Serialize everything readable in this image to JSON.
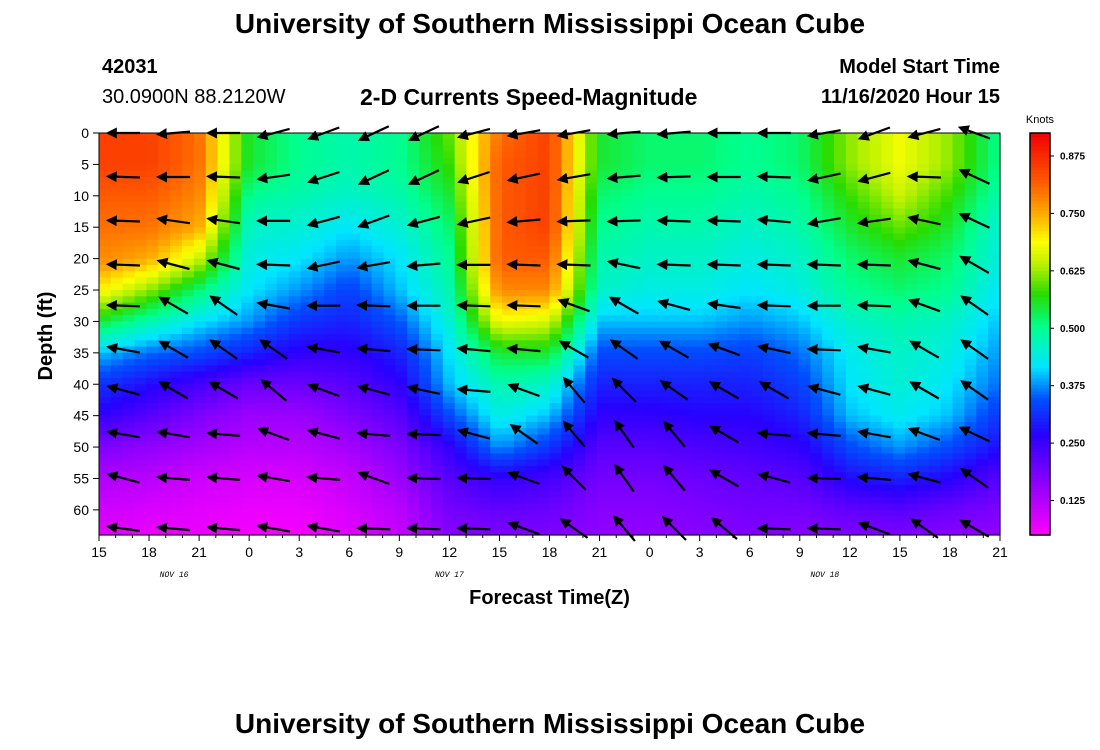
{
  "header": {
    "title": "University of Southern Mississippi Ocean Cube",
    "station_id": "42031",
    "station_coords": "30.0900N 88.2120W",
    "plot_title": "2-D Currents Speed-Magnitude",
    "model_start_label": "Model Start Time",
    "model_start_value": "11/16/2020 Hour 15"
  },
  "footer": {
    "title": "University of Southern Mississippi Ocean Cube"
  },
  "chart_data": {
    "type": "heatmap",
    "title": "2-D Currents Speed-Magnitude",
    "xlabel": "Forecast Time(Z)",
    "ylabel": "Depth (ft)",
    "x_ticks": [
      "15",
      "18",
      "21",
      "0",
      "3",
      "6",
      "9",
      "12",
      "15",
      "18",
      "21",
      "0",
      "3",
      "6",
      "9",
      "12",
      "15",
      "18",
      "21"
    ],
    "date_labels": [
      {
        "label": "NOV 16",
        "tick_index": 1.5
      },
      {
        "label": "NOV 17",
        "tick_index": 7
      },
      {
        "label": "NOV 18",
        "tick_index": 14.5
      }
    ],
    "y_ticks": [
      0,
      5,
      10,
      15,
      20,
      25,
      30,
      35,
      40,
      45,
      50,
      55,
      60
    ],
    "ylim": [
      0,
      64
    ],
    "y_inverted": true,
    "colorbar": {
      "label": "Knots",
      "range": [
        0.05,
        0.925
      ],
      "ticks": [
        "0.125",
        "0.250",
        "0.375",
        "0.500",
        "0.625",
        "0.750",
        "0.875"
      ],
      "tick_values": [
        0.125,
        0.25,
        0.375,
        0.5,
        0.625,
        0.75,
        0.875
      ],
      "colormap": "rainbow: magenta-blue-cyan-green-yellow-orange-red"
    },
    "speed_grid": {
      "depths_ft": [
        0,
        5,
        10,
        15,
        20,
        25,
        30,
        35,
        40,
        45,
        50,
        55,
        60,
        64
      ],
      "time_index": [
        0,
        1,
        2,
        3,
        4,
        5,
        6,
        7,
        8,
        9,
        10,
        11,
        12,
        13,
        14,
        15,
        16,
        17,
        18
      ],
      "values": [
        [
          0.85,
          0.85,
          0.8,
          0.55,
          0.5,
          0.48,
          0.5,
          0.6,
          0.8,
          0.85,
          0.55,
          0.52,
          0.52,
          0.5,
          0.52,
          0.62,
          0.68,
          0.62,
          0.5
        ],
        [
          0.85,
          0.85,
          0.8,
          0.55,
          0.5,
          0.48,
          0.5,
          0.58,
          0.82,
          0.85,
          0.55,
          0.52,
          0.52,
          0.5,
          0.52,
          0.62,
          0.68,
          0.62,
          0.5
        ],
        [
          0.82,
          0.82,
          0.78,
          0.5,
          0.48,
          0.46,
          0.48,
          0.55,
          0.82,
          0.85,
          0.52,
          0.5,
          0.5,
          0.48,
          0.5,
          0.58,
          0.65,
          0.58,
          0.48
        ],
        [
          0.8,
          0.8,
          0.75,
          0.46,
          0.45,
          0.42,
          0.45,
          0.52,
          0.82,
          0.85,
          0.5,
          0.48,
          0.48,
          0.46,
          0.48,
          0.55,
          0.6,
          0.55,
          0.45
        ],
        [
          0.78,
          0.75,
          0.65,
          0.44,
          0.42,
          0.38,
          0.42,
          0.5,
          0.82,
          0.82,
          0.48,
          0.46,
          0.46,
          0.44,
          0.46,
          0.52,
          0.55,
          0.52,
          0.44
        ],
        [
          0.7,
          0.62,
          0.52,
          0.42,
          0.38,
          0.33,
          0.4,
          0.48,
          0.78,
          0.78,
          0.46,
          0.44,
          0.44,
          0.42,
          0.44,
          0.5,
          0.52,
          0.5,
          0.42
        ],
        [
          0.55,
          0.48,
          0.42,
          0.38,
          0.32,
          0.3,
          0.35,
          0.45,
          0.68,
          0.66,
          0.4,
          0.4,
          0.4,
          0.38,
          0.4,
          0.46,
          0.48,
          0.46,
          0.4
        ],
        [
          0.4,
          0.36,
          0.34,
          0.3,
          0.26,
          0.26,
          0.3,
          0.42,
          0.55,
          0.55,
          0.34,
          0.34,
          0.34,
          0.33,
          0.36,
          0.43,
          0.46,
          0.44,
          0.38
        ],
        [
          0.32,
          0.28,
          0.24,
          0.2,
          0.2,
          0.22,
          0.26,
          0.4,
          0.48,
          0.46,
          0.3,
          0.3,
          0.3,
          0.3,
          0.33,
          0.42,
          0.45,
          0.42,
          0.36
        ],
        [
          0.26,
          0.22,
          0.18,
          0.15,
          0.15,
          0.18,
          0.22,
          0.34,
          0.44,
          0.4,
          0.26,
          0.26,
          0.27,
          0.27,
          0.3,
          0.4,
          0.43,
          0.4,
          0.32
        ],
        [
          0.18,
          0.16,
          0.14,
          0.12,
          0.12,
          0.14,
          0.18,
          0.26,
          0.38,
          0.32,
          0.22,
          0.22,
          0.23,
          0.24,
          0.26,
          0.34,
          0.38,
          0.34,
          0.28
        ],
        [
          0.13,
          0.12,
          0.1,
          0.09,
          0.09,
          0.11,
          0.15,
          0.22,
          0.26,
          0.24,
          0.19,
          0.19,
          0.2,
          0.21,
          0.22,
          0.28,
          0.3,
          0.27,
          0.22
        ],
        [
          0.1,
          0.09,
          0.08,
          0.07,
          0.07,
          0.09,
          0.12,
          0.19,
          0.21,
          0.2,
          0.17,
          0.17,
          0.18,
          0.19,
          0.19,
          0.21,
          0.22,
          0.2,
          0.18
        ],
        [
          0.08,
          0.07,
          0.07,
          0.06,
          0.06,
          0.08,
          0.11,
          0.17,
          0.18,
          0.18,
          0.16,
          0.16,
          0.17,
          0.18,
          0.17,
          0.18,
          0.18,
          0.17,
          0.16
        ]
      ]
    },
    "vectors": {
      "times": [
        0.5,
        1.5,
        2.5,
        3.5,
        4.5,
        5.5,
        6.5,
        7.5,
        8.5,
        9.5,
        10.5,
        11.5,
        12.5,
        13.5,
        14.5,
        15.5,
        16.5,
        17.5
      ],
      "depths_ft": [
        0,
        7,
        14,
        21,
        27.5,
        34.5,
        41,
        48,
        55,
        63
      ],
      "direction_deg": [
        [
          180,
          185,
          180,
          195,
          200,
          205,
          205,
          195,
          190,
          190,
          185,
          185,
          180,
          180,
          190,
          200,
          195,
          160
        ],
        [
          178,
          180,
          178,
          188,
          198,
          205,
          205,
          198,
          192,
          190,
          185,
          182,
          180,
          178,
          192,
          195,
          178,
          155
        ],
        [
          178,
          172,
          172,
          180,
          195,
          200,
          195,
          192,
          185,
          182,
          182,
          178,
          178,
          175,
          190,
          188,
          168,
          155
        ],
        [
          178,
          165,
          165,
          178,
          192,
          190,
          185,
          180,
          178,
          178,
          168,
          178,
          178,
          178,
          178,
          178,
          165,
          150
        ],
        [
          178,
          150,
          145,
          170,
          180,
          178,
          180,
          178,
          178,
          160,
          150,
          165,
          172,
          178,
          180,
          178,
          160,
          145
        ],
        [
          170,
          150,
          145,
          145,
          170,
          175,
          178,
          175,
          175,
          150,
          145,
          150,
          160,
          168,
          178,
          170,
          150,
          145
        ],
        [
          165,
          150,
          150,
          140,
          160,
          165,
          168,
          175,
          160,
          130,
          135,
          145,
          150,
          150,
          165,
          165,
          150,
          145
        ],
        [
          170,
          170,
          175,
          160,
          165,
          175,
          178,
          165,
          145,
          130,
          125,
          130,
          150,
          175,
          175,
          170,
          160,
          155
        ],
        [
          165,
          175,
          175,
          170,
          175,
          160,
          178,
          178,
          160,
          135,
          125,
          130,
          150,
          165,
          178,
          175,
          165,
          145
        ],
        [
          172,
          175,
          175,
          170,
          170,
          178,
          178,
          178,
          160,
          145,
          130,
          135,
          140,
          178,
          178,
          160,
          145,
          150
        ]
      ],
      "length_px": 32
    }
  }
}
